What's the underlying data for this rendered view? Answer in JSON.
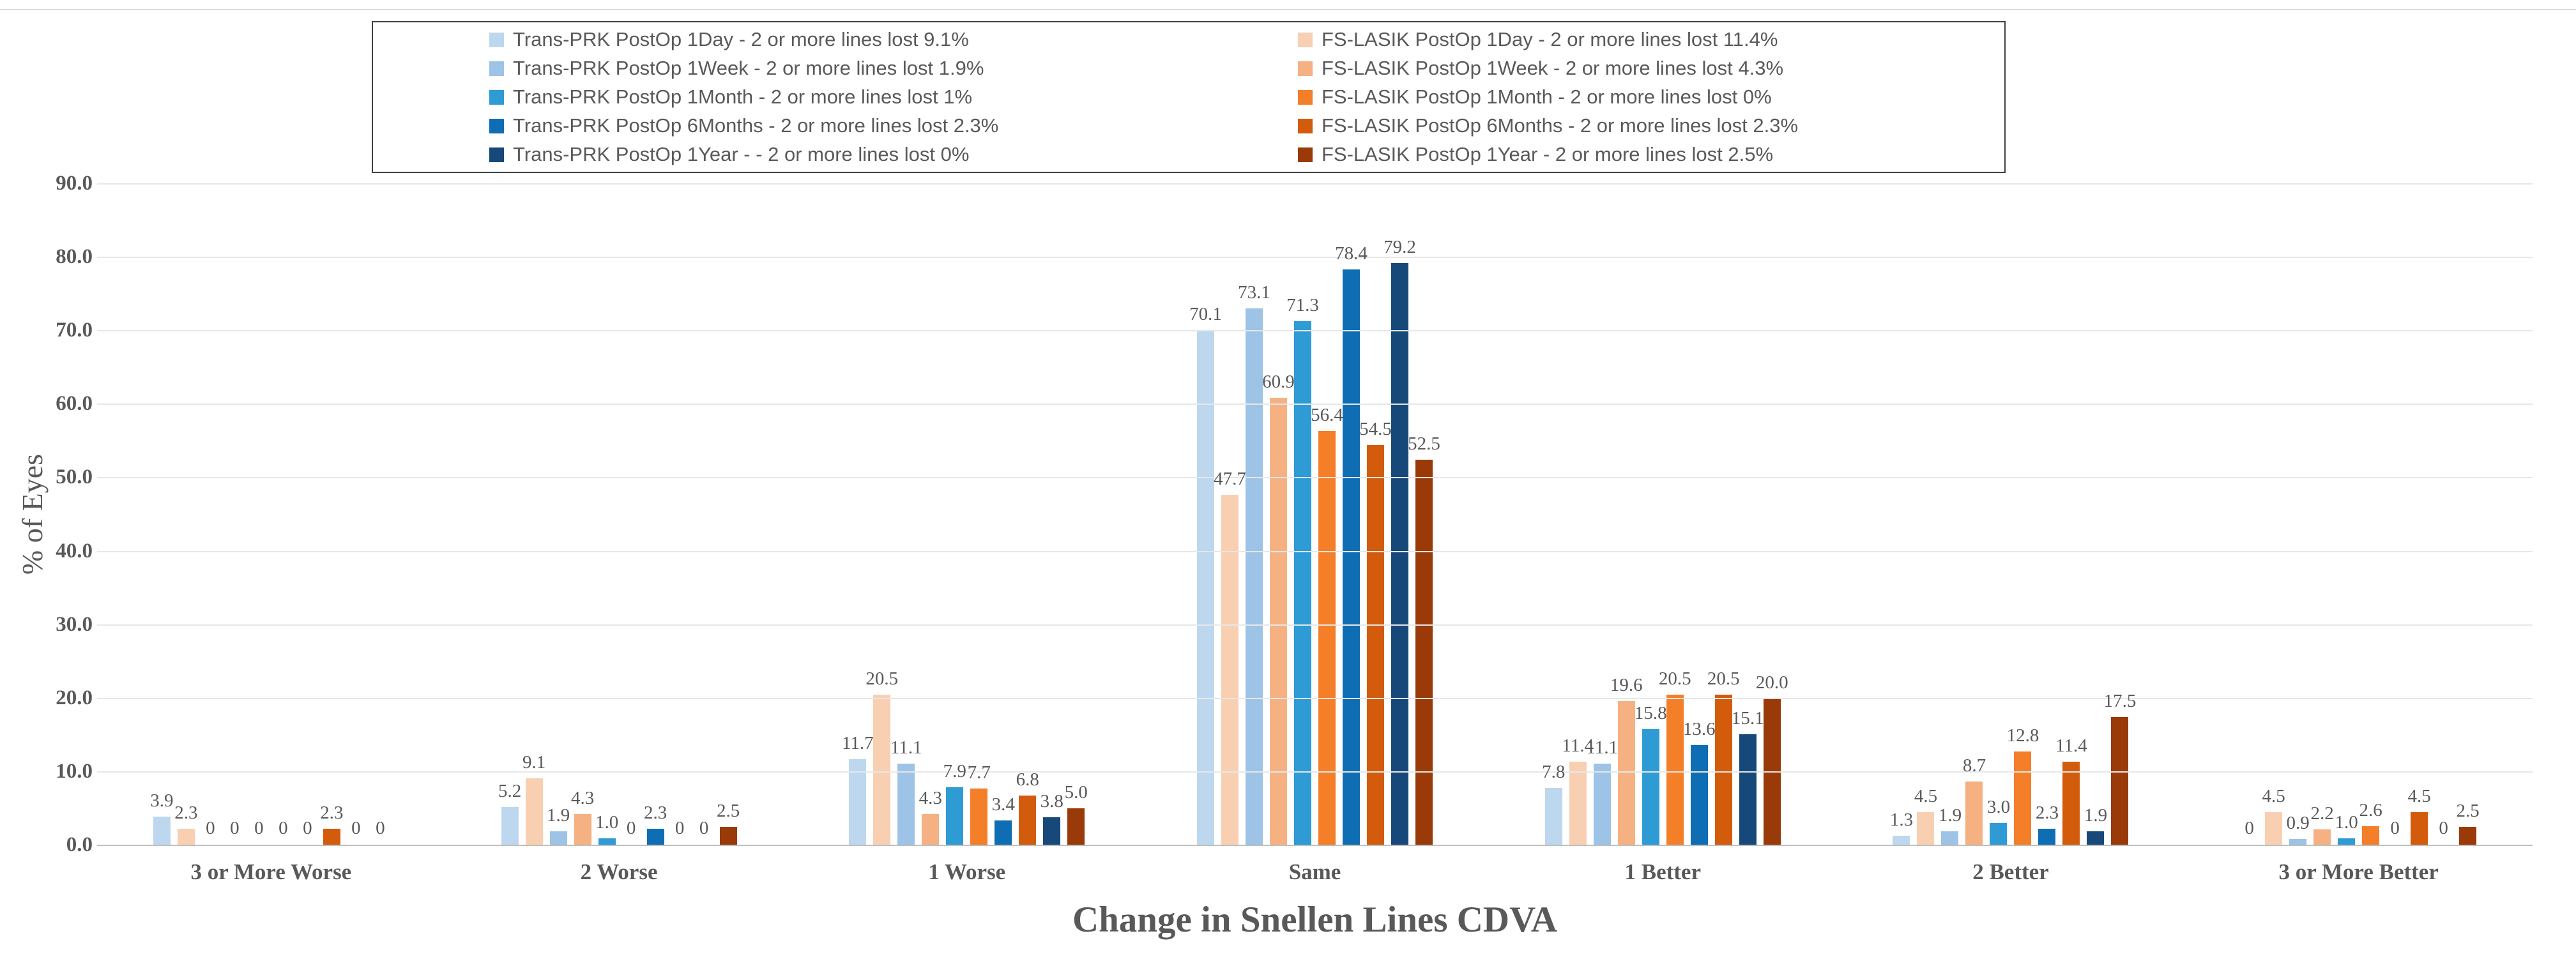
{
  "chart_data": {
    "type": "bar",
    "title": "",
    "xlabel": "Change in Snellen Lines CDVA",
    "ylabel": "% of Eyes",
    "ylim": [
      0,
      90
    ],
    "ytick_step": 10,
    "ytick_labels": [
      "0.0",
      "10.0",
      "20.0",
      "30.0",
      "40.0",
      "50.0",
      "60.0",
      "70.0",
      "80.0",
      "90.0"
    ],
    "grid": true,
    "legend_position": "top-center",
    "categories": [
      "3 or More Worse",
      "2 Worse",
      "1 Worse",
      "Same",
      "1 Better",
      "2 Better",
      "3 or More Better"
    ],
    "series": [
      {
        "name": "Trans-PRK PostOp 1Day - 2 or more lines lost 9.1%",
        "color": "#BDD7EE",
        "values": [
          3.9,
          5.2,
          11.7,
          70.1,
          7.8,
          1.3,
          0
        ]
      },
      {
        "name": "FS-LASIK PostOp 1Day - 2 or more lines lost 11.4%",
        "color": "#F9CFB2",
        "values": [
          2.3,
          9.1,
          20.5,
          47.7,
          11.4,
          4.5,
          4.5
        ]
      },
      {
        "name": "Trans-PRK PostOp 1Week - 2 or more lines lost 1.9%",
        "color": "#9DC3E6",
        "values": [
          0,
          1.9,
          11.1,
          73.1,
          11.1,
          1.9,
          0.9
        ]
      },
      {
        "name": "FS-LASIK PostOp 1Week - 2 or more lines lost 4.3%",
        "color": "#F6B183",
        "values": [
          0,
          4.3,
          4.3,
          60.9,
          19.6,
          8.7,
          2.2
        ]
      },
      {
        "name": "Trans-PRK PostOp 1Month - 2 or more lines lost 1%",
        "color": "#2E9BD5",
        "values": [
          0,
          1.0,
          7.9,
          71.3,
          15.8,
          3.0,
          1.0
        ]
      },
      {
        "name": "FS-LASIK PostOp 1Month - 2 or more lines lost 0%",
        "color": "#F57E28",
        "values": [
          0,
          0,
          7.7,
          56.4,
          20.5,
          12.8,
          2.6
        ]
      },
      {
        "name": "Trans-PRK PostOp 6Months - 2 or more lines lost 2.3%",
        "color": "#0F6DB4",
        "values": [
          0,
          2.3,
          3.4,
          78.4,
          13.6,
          2.3,
          0
        ]
      },
      {
        "name": "FS-LASIK PostOp 6Months - 2 or more lines lost 2.3%",
        "color": "#D35B0C",
        "values": [
          2.3,
          0,
          6.8,
          54.5,
          20.5,
          11.4,
          4.5
        ]
      },
      {
        "name": "Trans-PRK PostOp 1Year - - 2 or more lines lost 0%",
        "color": "#16497A",
        "values": [
          0,
          0,
          3.8,
          79.2,
          15.1,
          1.9,
          0
        ]
      },
      {
        "name": "FS-LASIK PostOp 1Year - 2 or more lines lost 2.5%",
        "color": "#993A08",
        "values": [
          0,
          2.5,
          5.0,
          52.5,
          20.0,
          17.5,
          2.5
        ]
      }
    ],
    "legend_item_order": [
      0,
      2,
      4,
      6,
      8,
      1,
      3,
      5,
      7,
      9
    ],
    "data_label_format": "zero shown as 0, otherwise one decimal place"
  },
  "palette": {
    "axis_text": "#595959",
    "gridline": "#E7E7E7",
    "baseline": "#BFBFBF",
    "legend_border": "#404040",
    "background": "#FFFFFF"
  }
}
